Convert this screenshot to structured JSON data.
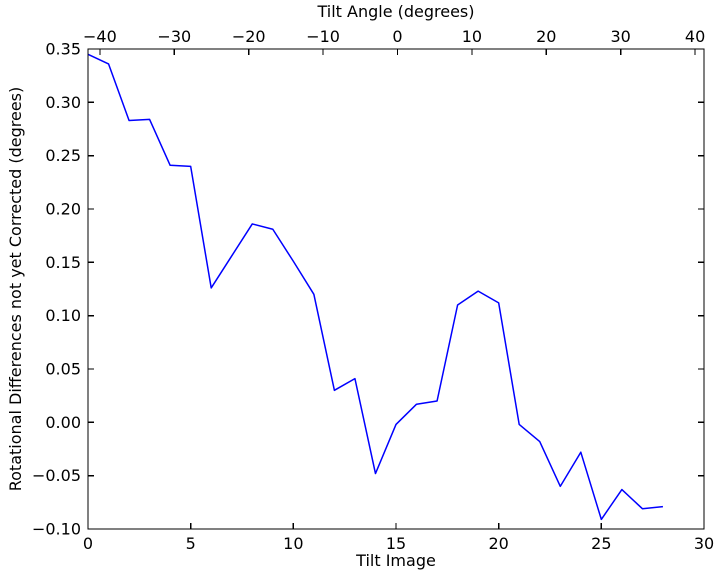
{
  "chart_data": {
    "type": "line",
    "title": "Tilt Angle (degrees)",
    "xlabel": "Tilt Image",
    "ylabel": "Rotational Differences not yet Corrected (degrees)",
    "line_color": "#0000ff",
    "background_color": "#ffffff",
    "grid": false,
    "legend": "none",
    "x": [
      0,
      1,
      2,
      3,
      4,
      5,
      6,
      7,
      8,
      9,
      10,
      11,
      12,
      13,
      14,
      15,
      16,
      17,
      18,
      19,
      20,
      21,
      22,
      23,
      24,
      25,
      26,
      27,
      28
    ],
    "values": [
      0.345,
      0.336,
      0.283,
      0.284,
      0.241,
      0.24,
      0.126,
      0.156,
      0.186,
      0.181,
      0.151,
      0.12,
      0.03,
      0.041,
      -0.048,
      -0.002,
      0.017,
      0.02,
      0.11,
      0.123,
      0.112,
      -0.002,
      -0.018,
      -0.06,
      -0.028,
      -0.091,
      -0.063,
      -0.081,
      -0.079
    ],
    "bottom_axis": {
      "label": "Tilt Image",
      "lim": [
        0,
        30
      ],
      "ticks": [
        0,
        5,
        10,
        15,
        20,
        25,
        30
      ],
      "tick_labels": [
        "0",
        "5",
        "10",
        "15",
        "20",
        "25",
        "30"
      ]
    },
    "top_axis": {
      "label": "Tilt Angle (degrees)",
      "lim": [
        -41.6,
        41.2
      ],
      "ticks": [
        -40,
        -30,
        -20,
        -10,
        0,
        10,
        20,
        30,
        40
      ],
      "tick_labels": [
        "−40",
        "−30",
        "−20",
        "−10",
        "0",
        "10",
        "20",
        "30",
        "40"
      ]
    },
    "y_axis": {
      "label": "Rotational Differences not yet Corrected (degrees)",
      "lim": [
        -0.1,
        0.35
      ],
      "ticks": [
        0.35,
        0.3,
        0.25,
        0.2,
        0.15,
        0.1,
        0.05,
        0.0,
        -0.05,
        -0.1
      ],
      "tick_labels": [
        "0.35",
        "0.30",
        "0.25",
        "0.20",
        "0.15",
        "0.10",
        "0.05",
        "0.00",
        "−0.05",
        "−0.10"
      ]
    }
  }
}
